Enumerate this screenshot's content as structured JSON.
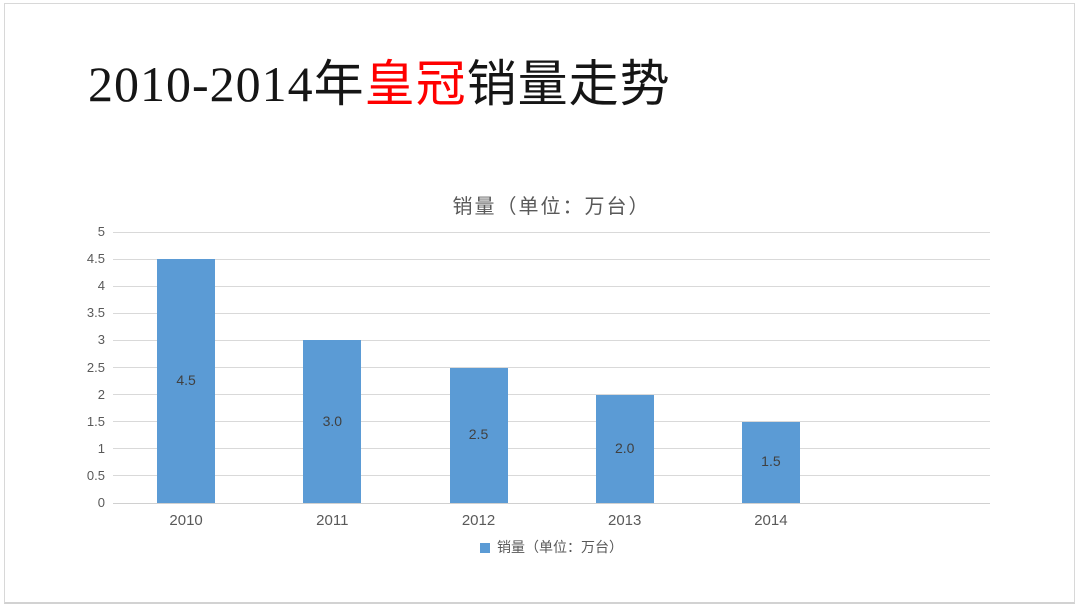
{
  "slide": {
    "title": {
      "prefix": "2010-2014年",
      "highlight": "皇冠",
      "suffix": "销量走势",
      "highlight_color": "#FF0000",
      "text_color": "#151515"
    }
  },
  "chart_data": {
    "type": "bar",
    "title": "销量（单位：万台）",
    "categories": [
      "2010",
      "2011",
      "2012",
      "2013",
      "2014"
    ],
    "series": [
      {
        "name": "销量（单位：万台）",
        "values": [
          4.5,
          3.0,
          2.5,
          2.0,
          1.5
        ]
      }
    ],
    "data_labels": [
      "4.5",
      "3.0",
      "2.5",
      "2.0",
      "1.5"
    ],
    "xlabel": "",
    "ylabel": "",
    "ylim": [
      0,
      5
    ],
    "ytick_step": 0.5,
    "yticks": [
      "0",
      "0.5",
      "1",
      "1.5",
      "2",
      "2.5",
      "3",
      "3.5",
      "4",
      "4.5",
      "5"
    ],
    "grid": true,
    "legend_position": "bottom",
    "legend_label": "销量（单位：万台）",
    "colors": {
      "bar": "#5B9BD5",
      "data_label": "#404040",
      "axis_text": "#595959",
      "gridline": "#D9D9D9",
      "axis_line": "#D0D0D0",
      "chart_title": "#595959"
    }
  }
}
